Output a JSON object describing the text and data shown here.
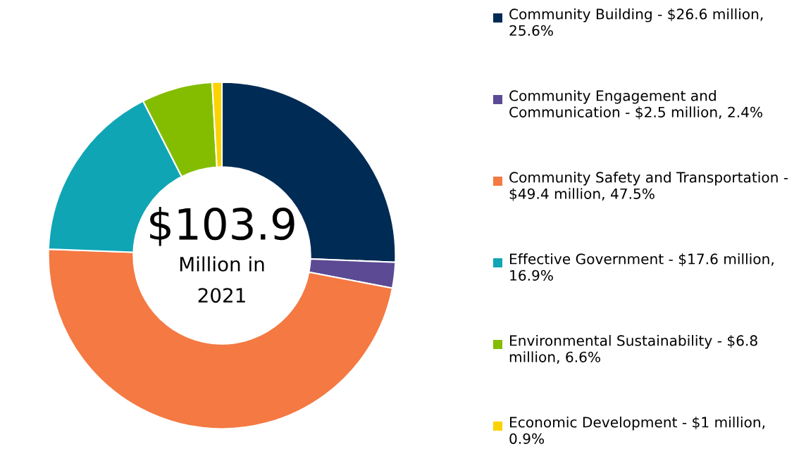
{
  "chart_data": {
    "type": "donut",
    "categories": [
      "Community Building - $26.6 million, 25.6%",
      "Community Engagement and Communication - $2.5 million, 2.4%",
      "Community Safety and Transportation - $49.4 million, 47.5%",
      "Effective Government - $17.6 million, 16.9%",
      "Environmental Sustainability - $6.8 million, 6.6%",
      "Economic Development - $1 million, 0.9%"
    ],
    "values": [
      25.6,
      2.4,
      47.5,
      16.9,
      6.6,
      0.9
    ],
    "colors": [
      "#002b55",
      "#5c4a94",
      "#f47942",
      "#0fa5b5",
      "#84bd00",
      "#fcd200"
    ],
    "annotations": [
      "$103.9",
      "Million in",
      "2021"
    ],
    "legend": "right"
  }
}
